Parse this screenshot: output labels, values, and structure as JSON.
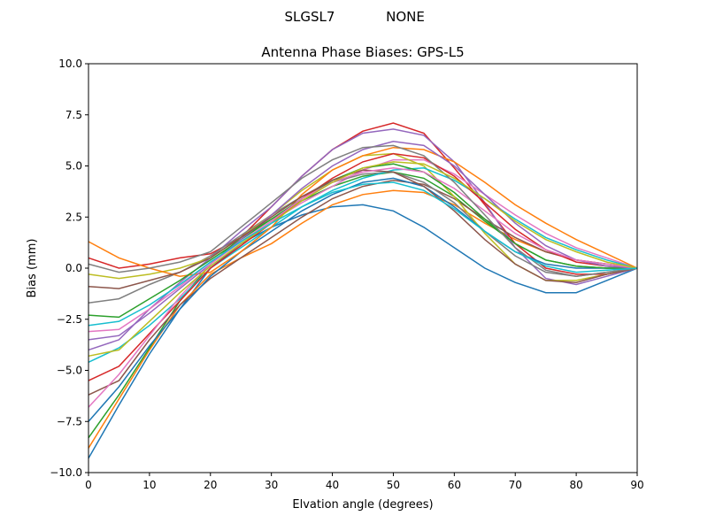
{
  "chart_data": {
    "type": "line",
    "suptitle_left": "SLGSL7",
    "suptitle_right": "NONE",
    "title": "Antenna Phase Biases: GPS-L5",
    "xlabel": "Elvation angle (degrees)",
    "ylabel": "Bias (mm)",
    "xlim": [
      0,
      90
    ],
    "ylim": [
      -10,
      10
    ],
    "xticks": [
      0,
      10,
      20,
      30,
      40,
      50,
      60,
      70,
      80,
      90
    ],
    "yticks": [
      -10.0,
      -7.5,
      -5.0,
      -2.5,
      0.0,
      2.5,
      5.0,
      7.5,
      10.0
    ],
    "ytick_labels": [
      "−10.0",
      "−7.5",
      "−5.0",
      "−2.5",
      "0.0",
      "2.5",
      "5.0",
      "7.5",
      "10.0"
    ],
    "grid": false,
    "colors": [
      "#1f77b4",
      "#ff7f0e",
      "#2ca02c",
      "#d62728",
      "#9467bd",
      "#8c564b",
      "#e377c2",
      "#7f7f7f",
      "#bcbd22",
      "#17becf"
    ],
    "x": [
      0,
      5,
      10,
      15,
      20,
      25,
      30,
      35,
      40,
      45,
      50,
      55,
      60,
      65,
      70,
      75,
      80,
      85,
      90
    ],
    "series": [
      {
        "values": [
          -9.3,
          -6.7,
          -4.2,
          -2.0,
          0.0,
          1.2,
          2.0,
          2.6,
          3.0,
          3.1,
          2.8,
          2.0,
          1.0,
          0.0,
          -0.7,
          -1.2,
          -1.2,
          -0.6,
          0
        ]
      },
      {
        "values": [
          -8.8,
          -6.4,
          -4.0,
          -1.8,
          -0.3,
          0.5,
          1.2,
          2.2,
          3.1,
          3.6,
          3.8,
          3.7,
          3.1,
          2.2,
          1.4,
          0.8,
          0.4,
          0.2,
          0
        ]
      },
      {
        "values": [
          -8.3,
          -6.2,
          -3.9,
          -1.6,
          0.2,
          1.5,
          2.4,
          3.3,
          4.0,
          4.5,
          4.7,
          4.4,
          3.5,
          2.3,
          1.2,
          0.4,
          0.1,
          0.0,
          0
        ]
      },
      {
        "values": [
          0.5,
          0.0,
          0.2,
          0.5,
          0.7,
          1.5,
          3.0,
          4.5,
          5.8,
          6.7,
          7.1,
          6.6,
          4.9,
          3.1,
          1.2,
          0.0,
          -0.3,
          -0.3,
          0
        ]
      },
      {
        "values": [
          -4.0,
          -3.5,
          -2.0,
          -0.7,
          0.5,
          1.8,
          3.0,
          4.5,
          5.8,
          6.6,
          6.8,
          6.5,
          5.2,
          3.2,
          1.0,
          -0.5,
          -0.8,
          -0.4,
          0
        ]
      },
      {
        "values": [
          -6.2,
          -5.5,
          -3.5,
          -1.8,
          -0.5,
          0.5,
          1.5,
          2.5,
          3.4,
          4.0,
          4.3,
          4.1,
          3.4,
          2.4,
          1.5,
          0.8,
          0.4,
          0.2,
          0
        ]
      },
      {
        "values": [
          -3.1,
          -3.0,
          -2.0,
          -0.9,
          0.3,
          1.3,
          2.3,
          3.2,
          4.0,
          4.8,
          5.3,
          5.3,
          4.6,
          3.6,
          2.6,
          1.7,
          1.0,
          0.5,
          0
        ]
      },
      {
        "values": [
          -1.7,
          -1.5,
          -0.8,
          -0.2,
          0.6,
          1.6,
          2.6,
          3.5,
          4.2,
          4.6,
          4.7,
          4.2,
          3.2,
          1.8,
          0.6,
          -0.2,
          -0.4,
          -0.2,
          0
        ]
      },
      {
        "values": [
          -0.3,
          -0.5,
          -0.3,
          0.0,
          0.5,
          1.5,
          2.6,
          3.8,
          4.8,
          5.5,
          5.6,
          5.0,
          3.5,
          1.7,
          0.2,
          -0.6,
          -0.6,
          -0.3,
          0
        ]
      },
      {
        "values": [
          -4.6,
          -3.9,
          -2.8,
          -1.5,
          0.0,
          1.0,
          2.0,
          3.0,
          3.8,
          4.4,
          4.8,
          4.9,
          4.3,
          3.4,
          2.4,
          1.5,
          0.9,
          0.4,
          0
        ]
      },
      {
        "values": [
          -7.5,
          -5.8,
          -3.8,
          -2.0,
          -0.4,
          0.8,
          1.8,
          2.8,
          3.6,
          4.2,
          4.4,
          4.0,
          3.0,
          1.8,
          0.8,
          0.2,
          0.0,
          0.0,
          0
        ]
      },
      {
        "values": [
          1.3,
          0.5,
          0.0,
          -0.4,
          -0.2,
          0.8,
          2.0,
          3.6,
          4.8,
          5.5,
          5.9,
          5.8,
          5.2,
          4.2,
          3.1,
          2.2,
          1.4,
          0.7,
          0
        ]
      },
      {
        "values": [
          -2.3,
          -2.4,
          -1.5,
          -0.6,
          0.4,
          1.4,
          2.4,
          3.4,
          4.3,
          4.9,
          5.1,
          4.7,
          3.7,
          2.4,
          1.2,
          0.4,
          0.1,
          0.0,
          0
        ]
      },
      {
        "values": [
          -5.5,
          -4.8,
          -3.2,
          -1.6,
          0.0,
          1.1,
          2.2,
          3.4,
          4.4,
          5.2,
          5.6,
          5.4,
          4.5,
          3.2,
          1.9,
          0.9,
          0.3,
          0.1,
          0
        ]
      },
      {
        "values": [
          -3.5,
          -3.3,
          -2.2,
          -1.0,
          0.2,
          1.4,
          2.6,
          3.9,
          5.0,
          5.8,
          6.2,
          6.0,
          5.0,
          3.6,
          2.2,
          1.1,
          0.4,
          0.1,
          0
        ]
      },
      {
        "values": [
          -0.9,
          -1.0,
          -0.6,
          -0.2,
          0.5,
          1.5,
          2.5,
          3.5,
          4.3,
          4.8,
          4.7,
          4.0,
          2.8,
          1.4,
          0.2,
          -0.6,
          -0.7,
          -0.3,
          0
        ]
      },
      {
        "values": [
          -6.8,
          -5.2,
          -3.3,
          -1.4,
          0.2,
          1.3,
          2.3,
          3.4,
          4.2,
          4.7,
          4.9,
          4.7,
          3.9,
          2.8,
          1.7,
          0.9,
          0.4,
          0.2,
          0
        ]
      },
      {
        "values": [
          0.2,
          -0.2,
          0.0,
          0.3,
          0.8,
          2.0,
          3.2,
          4.4,
          5.3,
          5.9,
          6.0,
          5.5,
          4.2,
          2.6,
          1.0,
          -0.1,
          -0.4,
          -0.2,
          0
        ]
      },
      {
        "values": [
          -4.3,
          -4.0,
          -2.6,
          -1.2,
          0.1,
          1.2,
          2.2,
          3.3,
          4.2,
          4.9,
          5.2,
          5.1,
          4.4,
          3.4,
          2.3,
          1.4,
          0.8,
          0.3,
          0
        ]
      },
      {
        "values": [
          -2.8,
          -2.6,
          -1.8,
          -0.8,
          0.3,
          1.3,
          2.2,
          3.0,
          3.7,
          4.1,
          4.2,
          3.8,
          2.9,
          1.8,
          0.8,
          0.1,
          -0.2,
          -0.1,
          0
        ]
      }
    ]
  }
}
